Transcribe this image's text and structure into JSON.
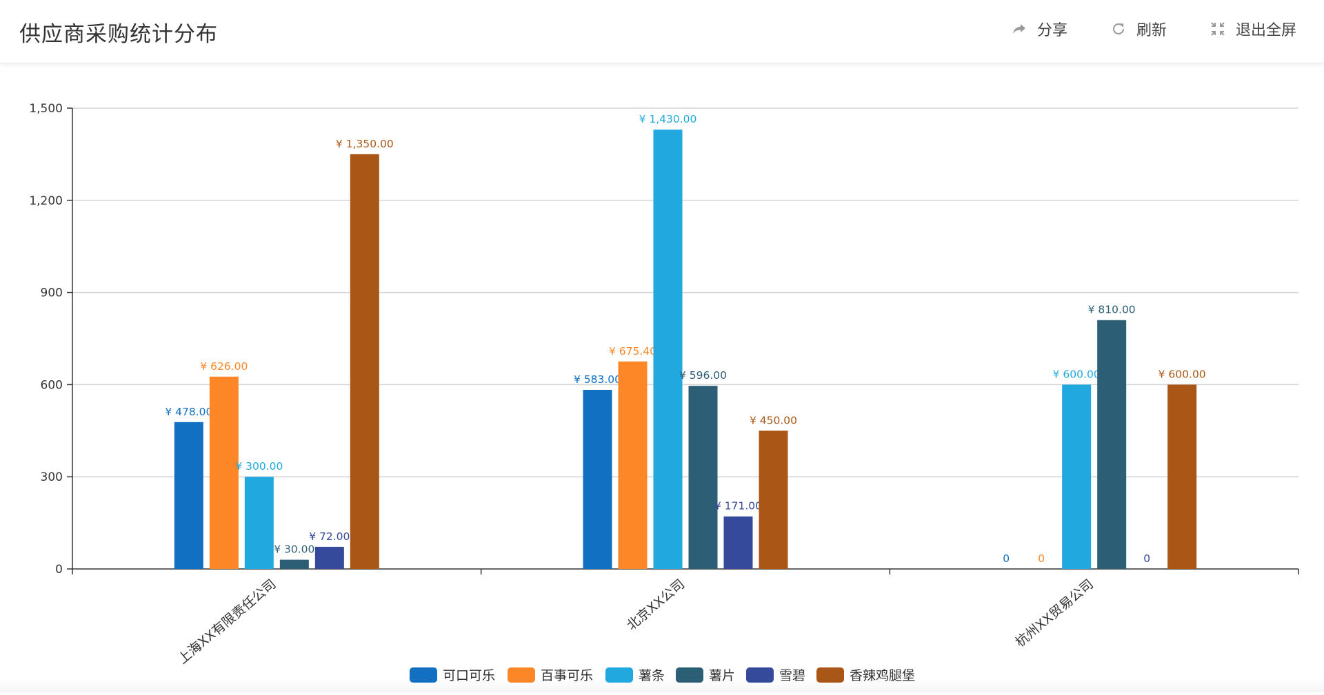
{
  "header": {
    "title": "供应商采购统计分布",
    "actions": [
      {
        "label": "分享",
        "icon": "share-icon"
      },
      {
        "label": "刷新",
        "icon": "refresh-icon"
      },
      {
        "label": "退出全屏",
        "icon": "exit-fullscreen-icon"
      }
    ]
  },
  "chart_data": {
    "type": "bar",
    "title": "",
    "xlabel": "",
    "ylabel": "",
    "ylim": [
      0,
      1500
    ],
    "yticks": [
      0,
      300,
      600,
      900,
      1200,
      1500
    ],
    "ytick_labels": [
      "0",
      "300",
      "600",
      "900",
      "1,200",
      "1,500"
    ],
    "grid": true,
    "legend_position": "bottom-center",
    "categories": [
      "上海XX有限责任公司",
      "北京XX公司",
      "杭州XX贸易公司"
    ],
    "series": [
      {
        "name": "可口可乐",
        "color": "#1170c2",
        "values": [
          478,
          583,
          0
        ],
        "labels": [
          "¥ 478.00",
          "¥ 583.00",
          "0"
        ]
      },
      {
        "name": "百事可乐",
        "color": "#fd8727",
        "values": [
          626,
          675.4,
          0
        ],
        "labels": [
          "¥ 626.00",
          "¥ 675.40",
          "0"
        ]
      },
      {
        "name": "薯条",
        "color": "#21a9df",
        "values": [
          300,
          1430,
          600
        ],
        "labels": [
          "¥ 300.00",
          "¥ 1,430.00",
          "¥ 600.00"
        ]
      },
      {
        "name": "薯片",
        "color": "#2c5e76",
        "values": [
          30,
          596,
          810
        ],
        "labels": [
          "¥ 30.00",
          "¥ 596.00",
          "¥ 810.00"
        ]
      },
      {
        "name": "雪碧",
        "color": "#354a9a",
        "values": [
          72,
          171,
          0
        ],
        "labels": [
          "¥ 72.00",
          "¥ 171.00",
          "0"
        ]
      },
      {
        "name": "香辣鸡腿堡",
        "color": "#a95617",
        "values": [
          1350,
          450,
          600
        ],
        "labels": [
          "¥ 1,350.00",
          "¥ 450.00",
          "¥ 600.00"
        ]
      }
    ]
  }
}
